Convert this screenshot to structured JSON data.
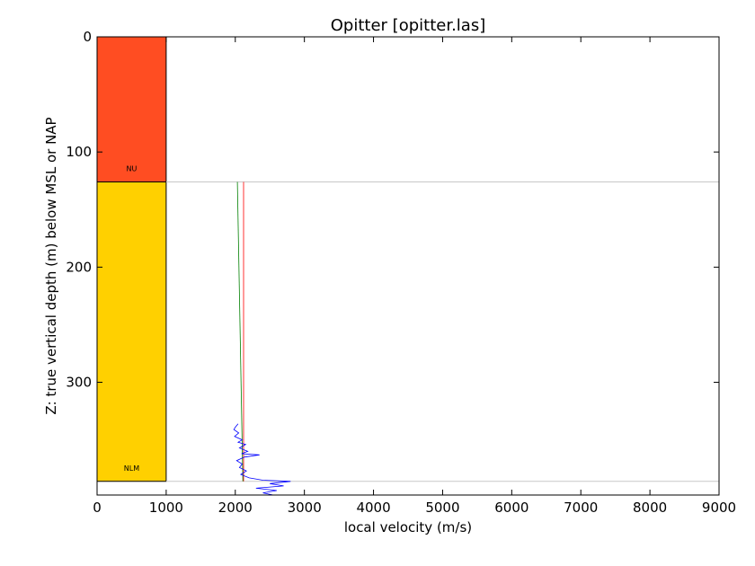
{
  "chart_data": {
    "type": "line",
    "title": "Opitter [opitter.las]",
    "xlabel": "local velocity (m/s)",
    "ylabel": "Z: true vertical depth (m) below MSL or NAP",
    "xlim": [
      0,
      9000
    ],
    "ylim": [
      400,
      0
    ],
    "y_inverted": true,
    "grid": false,
    "xticks": [
      0,
      1000,
      2000,
      3000,
      4000,
      5000,
      6000,
      7000,
      8000,
      9000
    ],
    "yticks": [
      0,
      100,
      200,
      300
    ],
    "formations": [
      {
        "name": "NU",
        "top": 0,
        "base": 126,
        "x_range": [
          0,
          1000
        ],
        "color": "#ff4d22"
      },
      {
        "name": "NLM",
        "top": 126,
        "base": 386,
        "x_range": [
          0,
          1000
        ],
        "color": "#ffd000"
      }
    ],
    "boundaries": [
      126,
      386
    ],
    "series": [
      {
        "color": "#ff0000",
        "points": [
          [
            2120,
            126
          ],
          [
            2120,
            386
          ]
        ]
      },
      {
        "color": "#008000",
        "points": [
          [
            2030,
            126
          ],
          [
            2110,
            386
          ]
        ]
      },
      {
        "color": "#0000ff",
        "points": [
          [
            2040,
            336
          ],
          [
            2000,
            339
          ],
          [
            1980,
            341
          ],
          [
            2050,
            344
          ],
          [
            1990,
            347
          ],
          [
            2100,
            350
          ],
          [
            2040,
            352
          ],
          [
            2150,
            354
          ],
          [
            2060,
            357
          ],
          [
            2180,
            360
          ],
          [
            2090,
            362
          ],
          [
            2350,
            363
          ],
          [
            2130,
            365
          ],
          [
            2020,
            368
          ],
          [
            2100,
            371
          ],
          [
            2060,
            374
          ],
          [
            2160,
            377
          ],
          [
            2080,
            380
          ],
          [
            2200,
            383
          ],
          [
            2400,
            385
          ],
          [
            2800,
            386
          ],
          [
            2500,
            388
          ],
          [
            2700,
            390
          ],
          [
            2300,
            392
          ],
          [
            2600,
            394
          ],
          [
            2400,
            396
          ],
          [
            2550,
            398
          ]
        ]
      }
    ]
  }
}
